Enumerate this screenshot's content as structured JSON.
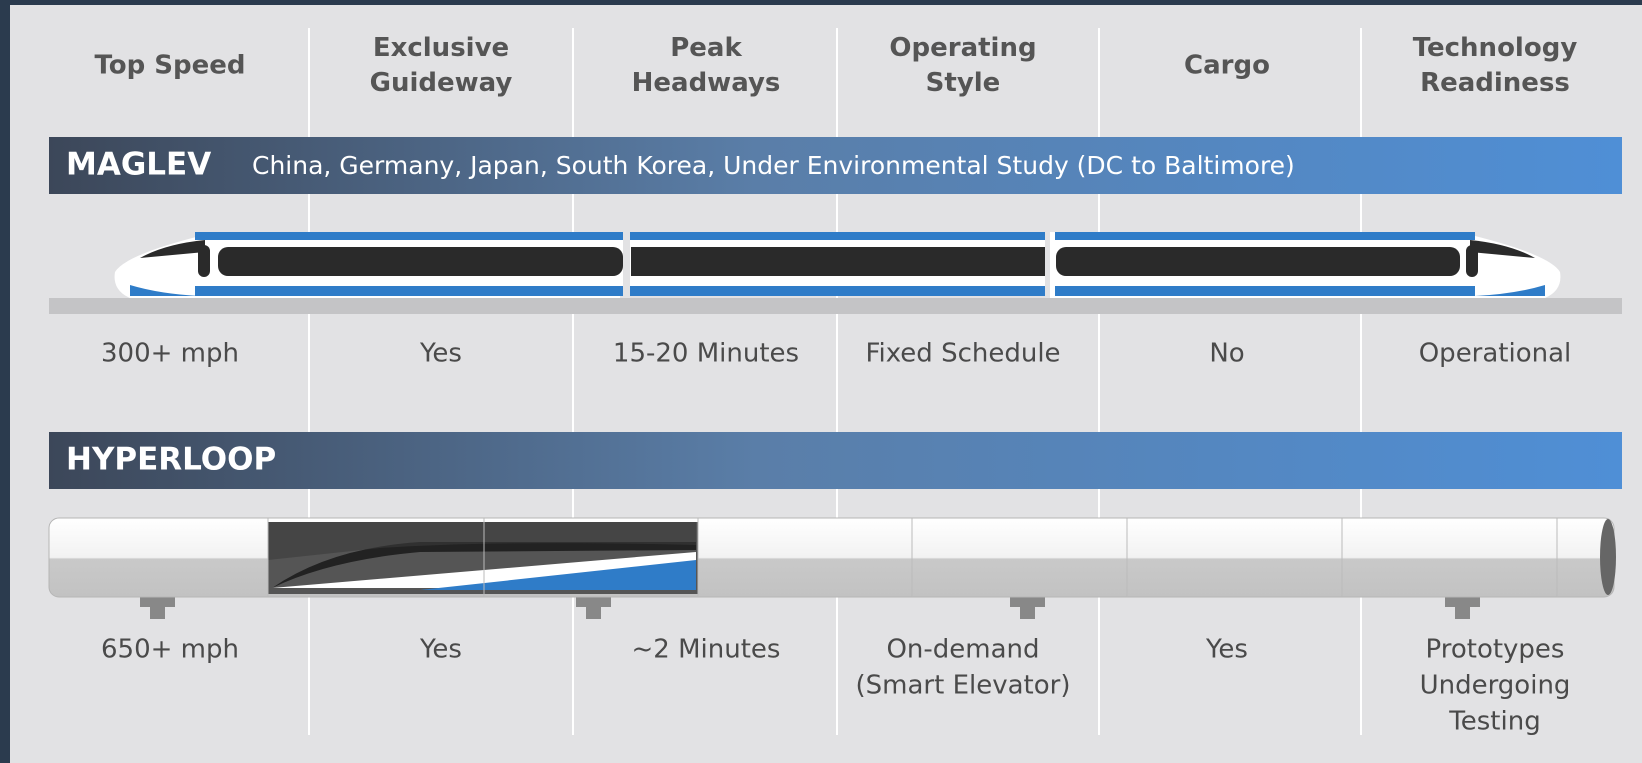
{
  "header": {
    "columns": [
      [
        "Top Speed"
      ],
      [
        "Exclusive",
        "Guideway"
      ],
      [
        "Peak",
        "Headways"
      ],
      [
        "Operating",
        "Style"
      ],
      [
        "Cargo"
      ],
      [
        "Technology",
        "Readiness"
      ]
    ]
  },
  "maglev": {
    "label": "MAGLEV",
    "locations": "China, Germany, Japan, South Korea, Under Environmental Study (DC to Baltimore)",
    "values": [
      [
        "300+ mph"
      ],
      [
        "Yes"
      ],
      [
        "15-20 Minutes"
      ],
      [
        "Fixed Schedule"
      ],
      [
        "No"
      ],
      [
        "Operational"
      ]
    ]
  },
  "hyperloop": {
    "label": "HYPERLOOP",
    "values": [
      [
        "650+ mph"
      ],
      [
        "Yes"
      ],
      [
        "~2 Minutes"
      ],
      [
        "On-demand",
        "(Smart Elevator)"
      ],
      [
        "Yes"
      ],
      [
        "Prototypes",
        "Undergoing",
        "Testing"
      ]
    ]
  }
}
